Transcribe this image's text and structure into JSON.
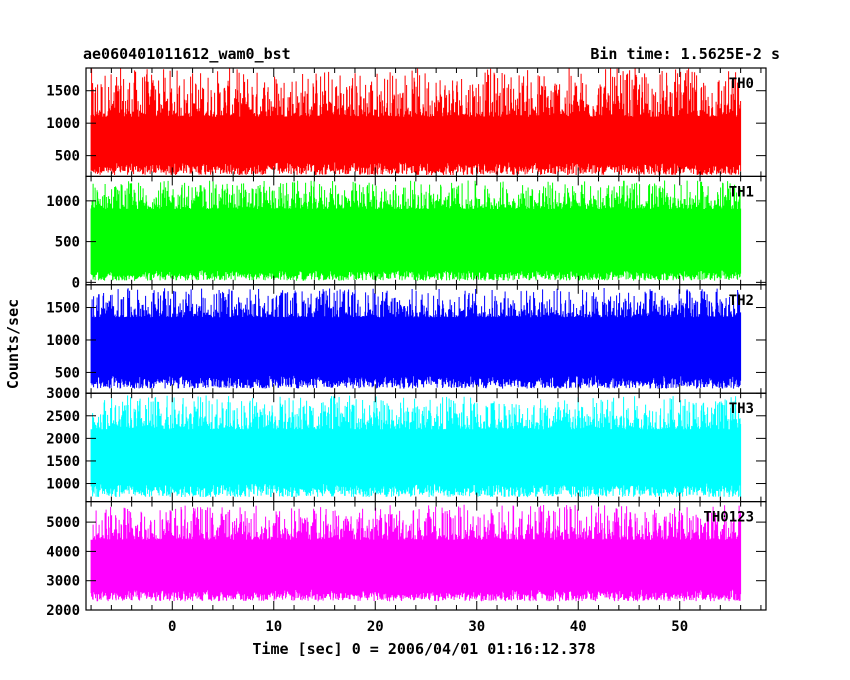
{
  "header": {
    "left": "ae060401011612_wam0_bst",
    "right": "Bin time: 1.5625E-2 s"
  },
  "chart_data": {
    "type": "line",
    "title": "ae060401011612_wam0_bst",
    "subtitle": "Bin time: 1.5625E-2 s",
    "xlabel": "Time [sec] 0 = 2006/04/01 01:16:12.378",
    "ylabel": "Counts/sec",
    "xlim": [
      -8.5,
      58.5
    ],
    "x_data_range": [
      -8,
      56
    ],
    "x_ticks": [
      0,
      10,
      20,
      30,
      40,
      50
    ],
    "x_tick_labels": [
      "0",
      "10",
      "20",
      "30",
      "40",
      "50"
    ],
    "panels": [
      {
        "name": "TH0",
        "color": "#ff0000",
        "ylim": [
          180,
          1850
        ],
        "y_ticks": [
          500,
          1000,
          1500
        ],
        "y_tick_labels": [
          "500",
          "1000",
          "1500"
        ],
        "typical_range": [
          400,
          1100
        ],
        "mean": 750,
        "min": 200,
        "max": 1850
      },
      {
        "name": "TH1",
        "color": "#00ff00",
        "ylim": [
          -30,
          1300
        ],
        "y_ticks": [
          0,
          500,
          1000
        ],
        "y_tick_labels": [
          "0",
          "500",
          "1000"
        ],
        "typical_range": [
          150,
          900
        ],
        "mean": 500,
        "min": 20,
        "max": 1250
      },
      {
        "name": "TH2",
        "color": "#0000ff",
        "ylim": [
          180,
          1850
        ],
        "y_ticks": [
          500,
          1000,
          1500
        ],
        "y_tick_labels": [
          "500",
          "1000",
          "1500"
        ],
        "typical_range": [
          450,
          1350
        ],
        "mean": 850,
        "min": 250,
        "max": 1800
      },
      {
        "name": "TH3",
        "color": "#00ffff",
        "ylim": [
          600,
          3000
        ],
        "y_ticks": [
          1000,
          1500,
          2000,
          2500,
          3000
        ],
        "y_tick_labels": [
          "1000",
          "1500",
          "2000",
          "2500",
          "3000"
        ],
        "typical_range": [
          1000,
          2200
        ],
        "mean": 1600,
        "min": 700,
        "max": 2950
      },
      {
        "name": "TH0123",
        "color": "#ff00ff",
        "ylim": [
          2000,
          5700
        ],
        "y_ticks": [
          2000,
          3000,
          4000,
          5000
        ],
        "y_tick_labels": [
          "2000",
          "3000",
          "4000",
          "5000"
        ],
        "typical_range": [
          2700,
          4400
        ],
        "mean": 3600,
        "min": 2300,
        "max": 5600
      }
    ]
  }
}
